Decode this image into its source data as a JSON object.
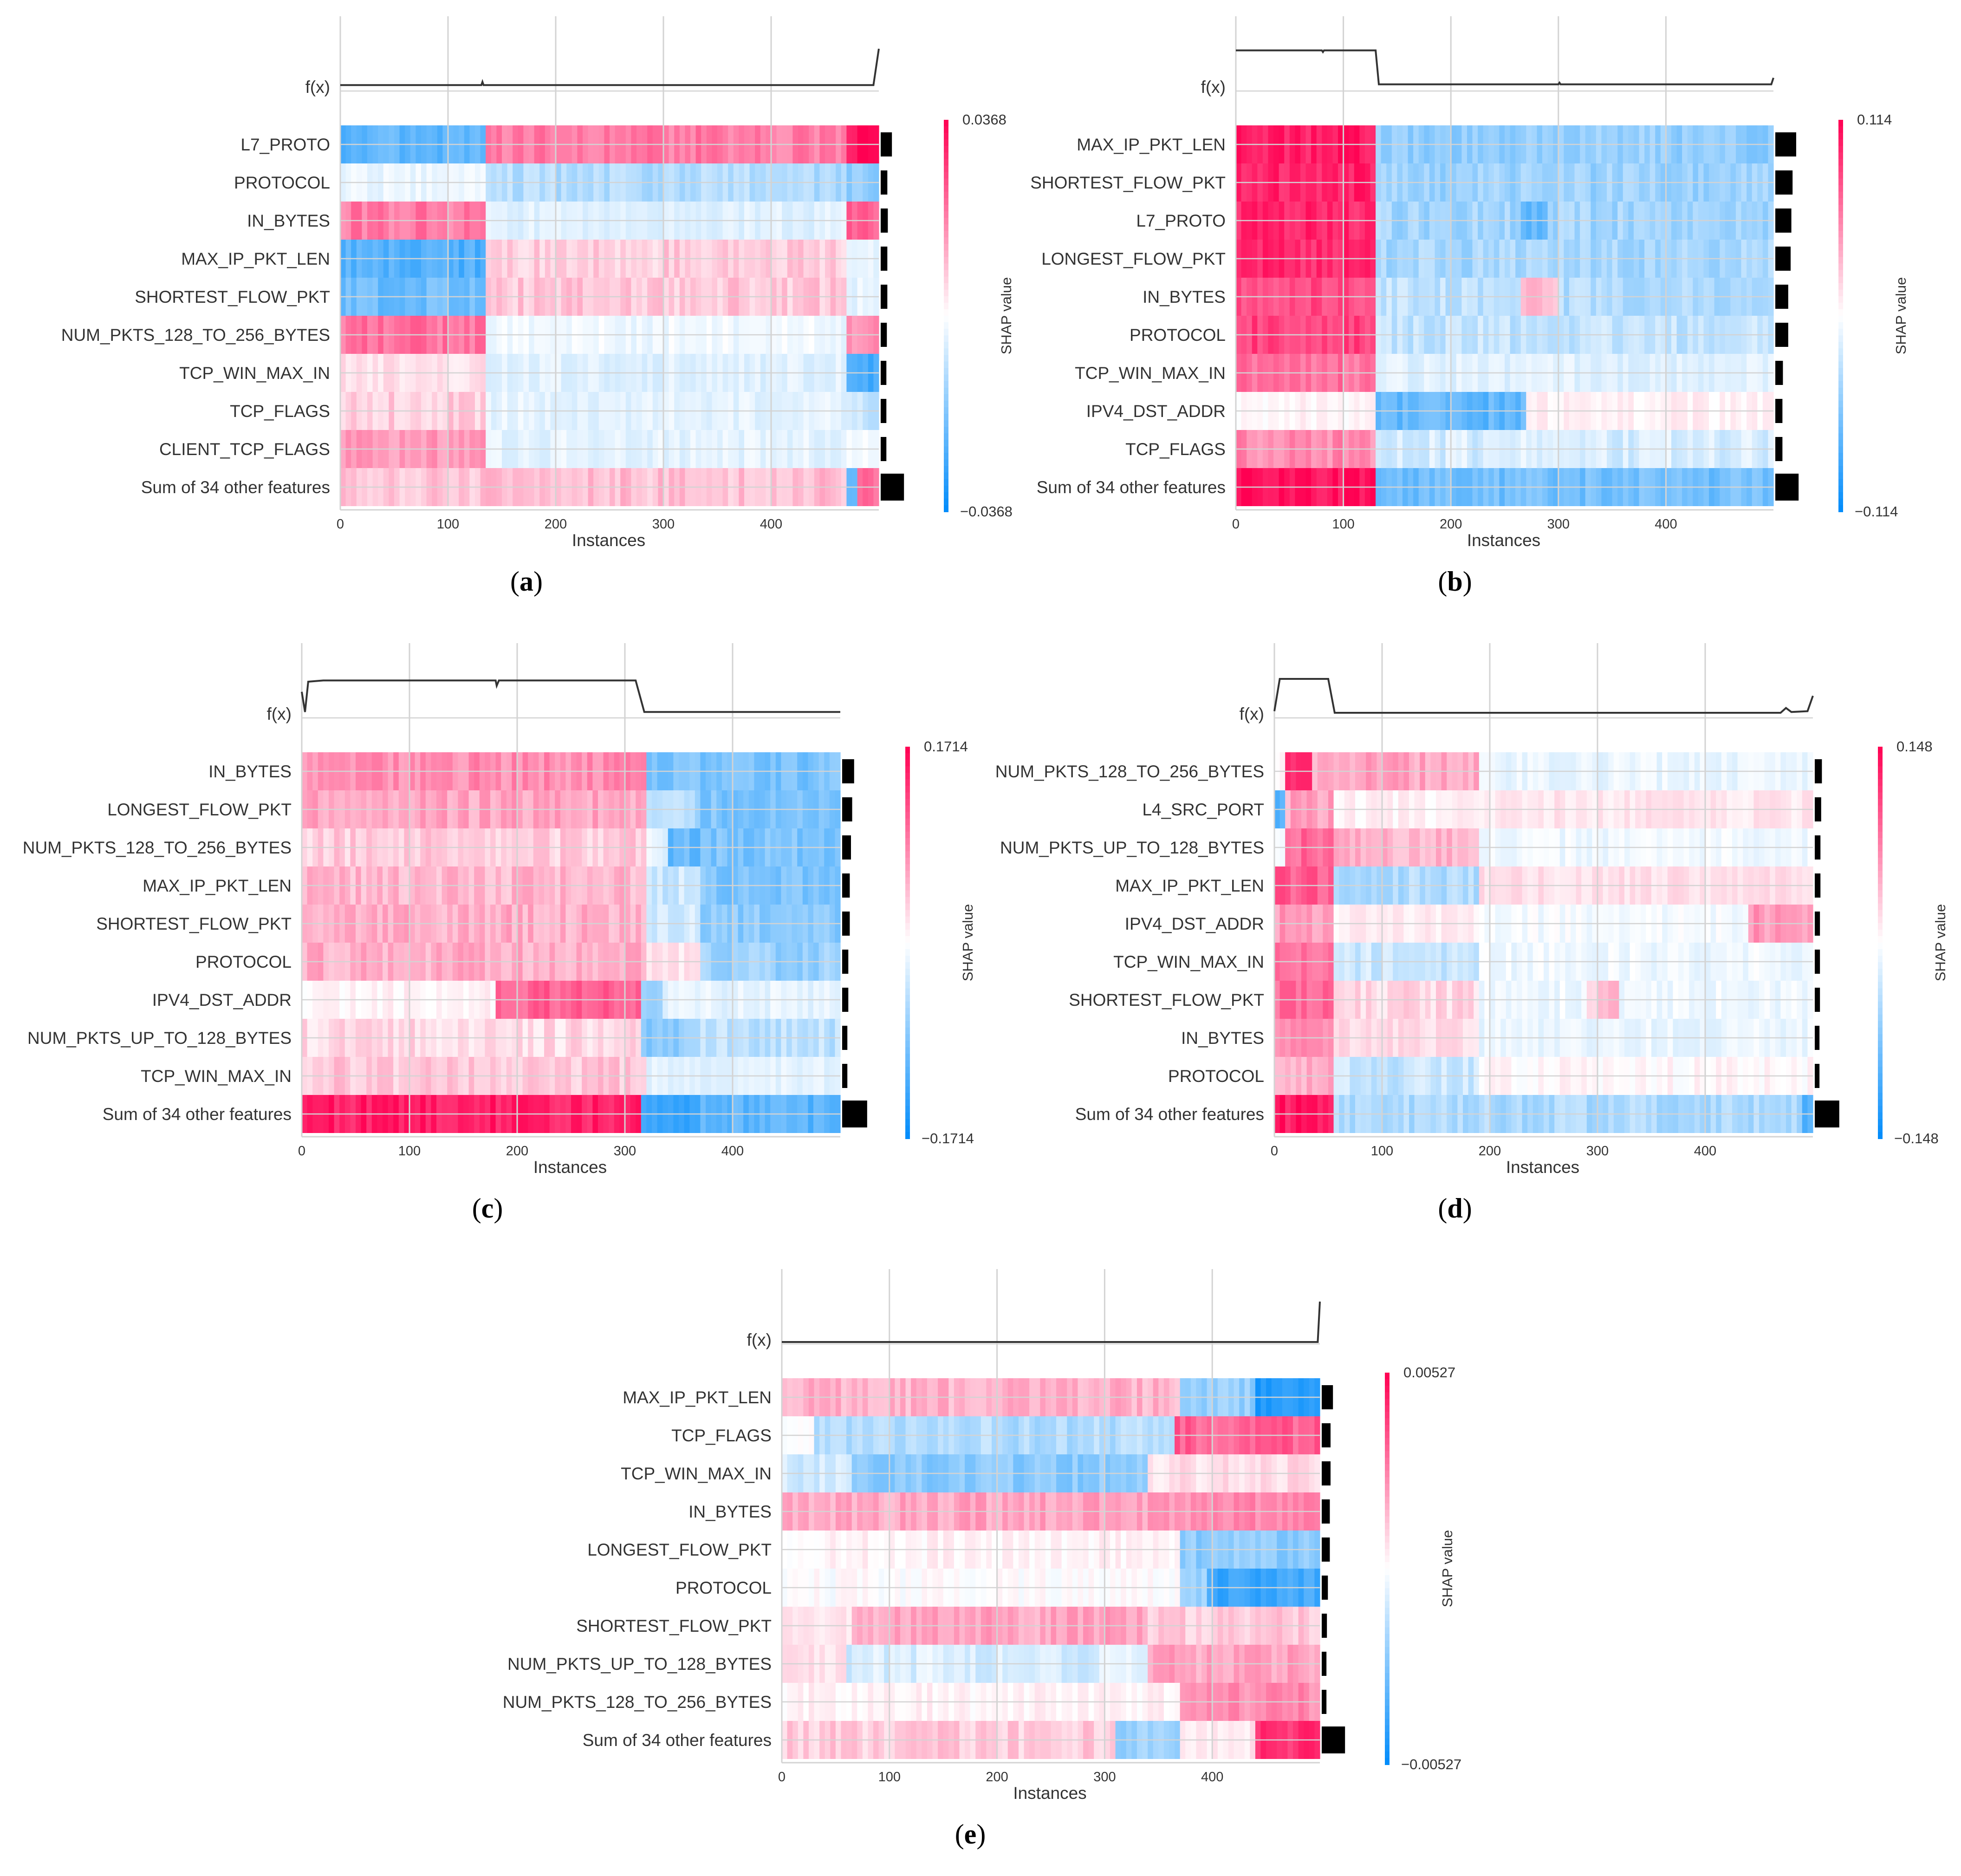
{
  "figure": {
    "colors": {
      "positive": "#ff0052",
      "negative": "#008bfb",
      "neutral": "#ffffff",
      "grid": "#d3d3d3",
      "line": "#333333",
      "bar": "#000000"
    },
    "fx_label": "f(x)",
    "instances_label": "Instances",
    "colorbar_label": "SHAP value"
  },
  "chart_data": [
    {
      "type": "heatmap",
      "panel": "a",
      "caption": {
        "open": "(",
        "letter": "a",
        "close": ")"
      },
      "features": [
        "L7_PROTO",
        "PROTOCOL",
        "IN_BYTES",
        "MAX_IP_PKT_LEN",
        "SHORTEST_FLOW_PKT",
        "NUM_PKTS_128_TO_256_BYTES",
        "TCP_WIN_MAX_IN",
        "TCP_FLAGS",
        "CLIENT_TCP_FLAGS",
        "Sum of 34 other features"
      ],
      "xlabel": "Instances",
      "xticks": [
        0,
        100,
        200,
        300,
        400
      ],
      "xlim": [
        0,
        500
      ],
      "n_instances": 500,
      "colorbar": {
        "max": 0.0368,
        "min": -0.0368,
        "max_label": "0.0368",
        "min_label": "−0.0368",
        "label": "SHAP value"
      },
      "segments": [
        [
          [
            0,
            133,
            -0.62
          ],
          [
            133,
            470,
            0.52
          ],
          [
            470,
            500,
            0.95
          ]
        ],
        [
          [
            0,
            133,
            -0.08
          ],
          [
            133,
            470,
            -0.3
          ],
          [
            470,
            500,
            -0.42
          ]
        ],
        [
          [
            0,
            133,
            0.52
          ],
          [
            133,
            470,
            -0.12
          ],
          [
            470,
            500,
            0.6
          ]
        ],
        [
          [
            0,
            133,
            -0.68
          ],
          [
            133,
            470,
            0.2
          ],
          [
            470,
            500,
            -0.12
          ]
        ],
        [
          [
            0,
            133,
            -0.58
          ],
          [
            133,
            470,
            0.22
          ],
          [
            470,
            500,
            -0.1
          ]
        ],
        [
          [
            0,
            133,
            0.55
          ],
          [
            133,
            470,
            -0.06
          ],
          [
            470,
            500,
            0.45
          ]
        ],
        [
          [
            0,
            133,
            0.12
          ],
          [
            133,
            470,
            -0.12
          ],
          [
            470,
            500,
            -0.72
          ]
        ],
        [
          [
            0,
            133,
            0.2
          ],
          [
            133,
            470,
            -0.1
          ],
          [
            470,
            500,
            -0.2
          ]
        ],
        [
          [
            0,
            133,
            0.38
          ],
          [
            133,
            470,
            -0.1
          ],
          [
            470,
            500,
            -0.05
          ]
        ],
        [
          [
            0,
            133,
            0.22
          ],
          [
            133,
            470,
            0.25
          ],
          [
            470,
            480,
            -0.55
          ],
          [
            480,
            500,
            0.55
          ]
        ]
      ],
      "importance": [
        0.35,
        0.16,
        0.18,
        0.16,
        0.16,
        0.14,
        0.12,
        0.12,
        0.12,
        0.85
      ],
      "fx": [
        [
          0,
          0.1
        ],
        [
          131,
          0.1
        ],
        [
          132,
          0.18
        ],
        [
          133,
          0.1
        ],
        [
          495,
          0.1
        ],
        [
          500,
          1.0
        ]
      ]
    },
    {
      "type": "heatmap",
      "panel": "b",
      "caption": {
        "open": "(",
        "letter": "b",
        "close": ")"
      },
      "features": [
        "MAX_IP_PKT_LEN",
        "SHORTEST_FLOW_PKT",
        "L7_PROTO",
        "LONGEST_FLOW_PKT",
        "IN_BYTES",
        "PROTOCOL",
        "TCP_WIN_MAX_IN",
        "IPV4_DST_ADDR",
        "TCP_FLAGS",
        "Sum of 34 other features"
      ],
      "xlabel": "Instances",
      "xticks": [
        0,
        100,
        200,
        300,
        400
      ],
      "xlim": [
        0,
        500
      ],
      "n_instances": 500,
      "colorbar": {
        "max": 0.114,
        "min": -0.114,
        "max_label": "0.114",
        "min_label": "−0.114",
        "label": "SHAP value"
      },
      "segments": [
        [
          [
            0,
            132,
            0.88
          ],
          [
            132,
            500,
            -0.42
          ]
        ],
        [
          [
            0,
            132,
            0.86
          ],
          [
            132,
            500,
            -0.38
          ]
        ],
        [
          [
            0,
            132,
            0.85
          ],
          [
            132,
            265,
            -0.36
          ],
          [
            265,
            290,
            -0.6
          ],
          [
            290,
            500,
            -0.36
          ]
        ],
        [
          [
            0,
            132,
            0.84
          ],
          [
            132,
            500,
            -0.34
          ]
        ],
        [
          [
            0,
            132,
            0.7
          ],
          [
            132,
            265,
            -0.24
          ],
          [
            265,
            300,
            0.28
          ],
          [
            300,
            500,
            -0.3
          ]
        ],
        [
          [
            0,
            132,
            0.75
          ],
          [
            132,
            500,
            -0.24
          ]
        ],
        [
          [
            0,
            132,
            0.55
          ],
          [
            132,
            500,
            -0.12
          ]
        ],
        [
          [
            0,
            132,
            0.04
          ],
          [
            132,
            270,
            -0.62
          ],
          [
            270,
            500,
            0.06
          ]
        ],
        [
          [
            0,
            132,
            0.46
          ],
          [
            132,
            500,
            -0.16
          ]
        ],
        [
          [
            0,
            132,
            0.95
          ],
          [
            132,
            500,
            -0.55
          ]
        ]
      ],
      "importance": [
        0.75,
        0.6,
        0.55,
        0.52,
        0.42,
        0.42,
        0.2,
        0.18,
        0.18,
        0.85
      ],
      "fx": [
        [
          0,
          0.96
        ],
        [
          80,
          0.96
        ],
        [
          81,
          0.92
        ],
        [
          82,
          0.96
        ],
        [
          130,
          0.96
        ],
        [
          133,
          0.12
        ],
        [
          300,
          0.12
        ],
        [
          301,
          0.16
        ],
        [
          302,
          0.12
        ],
        [
          498,
          0.12
        ],
        [
          500,
          0.28
        ]
      ]
    },
    {
      "type": "heatmap",
      "panel": "c",
      "caption": {
        "open": "(",
        "letter": "c",
        "close": ")"
      },
      "features": [
        "IN_BYTES",
        "LONGEST_FLOW_PKT",
        "NUM_PKTS_128_TO_256_BYTES",
        "MAX_IP_PKT_LEN",
        "SHORTEST_FLOW_PKT",
        "PROTOCOL",
        "IPV4_DST_ADDR",
        "NUM_PKTS_UP_TO_128_BYTES",
        "TCP_WIN_MAX_IN",
        "Sum of 34 other features"
      ],
      "xlabel": "Instances",
      "xticks": [
        0,
        100,
        200,
        300,
        400
      ],
      "xlim": [
        0,
        500
      ],
      "n_instances": 500,
      "colorbar": {
        "max": 0.1714,
        "min": -0.1714,
        "max_label": "0.1714",
        "min_label": "−0.1714",
        "label": "SHAP value"
      },
      "segments": [
        [
          [
            0,
            320,
            0.45
          ],
          [
            320,
            500,
            -0.52
          ]
        ],
        [
          [
            0,
            320,
            0.35
          ],
          [
            320,
            370,
            -0.3
          ],
          [
            370,
            500,
            -0.5
          ]
        ],
        [
          [
            0,
            320,
            0.2
          ],
          [
            320,
            340,
            -0.1
          ],
          [
            340,
            370,
            -0.6
          ],
          [
            370,
            500,
            -0.5
          ]
        ],
        [
          [
            0,
            320,
            0.28
          ],
          [
            320,
            370,
            -0.2
          ],
          [
            370,
            500,
            -0.5
          ]
        ],
        [
          [
            0,
            320,
            0.32
          ],
          [
            320,
            370,
            -0.15
          ],
          [
            370,
            500,
            -0.45
          ]
        ],
        [
          [
            0,
            320,
            0.32
          ],
          [
            320,
            370,
            0.1
          ],
          [
            370,
            500,
            -0.4
          ]
        ],
        [
          [
            0,
            180,
            0.05
          ],
          [
            180,
            315,
            0.62
          ],
          [
            315,
            335,
            -0.45
          ],
          [
            335,
            500,
            -0.1
          ]
        ],
        [
          [
            0,
            315,
            0.15
          ],
          [
            315,
            340,
            -0.45
          ],
          [
            340,
            370,
            -0.42
          ],
          [
            370,
            500,
            -0.25
          ]
        ],
        [
          [
            0,
            320,
            0.22
          ],
          [
            320,
            500,
            -0.1
          ]
        ],
        [
          [
            0,
            315,
            0.88
          ],
          [
            315,
            370,
            -0.82
          ],
          [
            370,
            500,
            -0.65
          ]
        ]
      ],
      "importance": [
        0.38,
        0.3,
        0.25,
        0.2,
        0.2,
        0.14,
        0.14,
        0.1,
        0.1,
        0.92
      ],
      "fx": [
        [
          0,
          0.6
        ],
        [
          3,
          0.1
        ],
        [
          6,
          0.85
        ],
        [
          20,
          0.88
        ],
        [
          180,
          0.88
        ],
        [
          181,
          0.75
        ],
        [
          183,
          0.88
        ],
        [
          310,
          0.88
        ],
        [
          318,
          0.1
        ],
        [
          500,
          0.1
        ]
      ]
    },
    {
      "type": "heatmap",
      "panel": "d",
      "caption": {
        "open": "(",
        "letter": "d",
        "close": ")"
      },
      "features": [
        "NUM_PKTS_128_TO_256_BYTES",
        "L4_SRC_PORT",
        "NUM_PKTS_UP_TO_128_BYTES",
        "MAX_IP_PKT_LEN",
        "IPV4_DST_ADDR",
        "TCP_WIN_MAX_IN",
        "SHORTEST_FLOW_PKT",
        "IN_BYTES",
        "PROTOCOL",
        "Sum of 34 other features"
      ],
      "xlabel": "Instances",
      "xticks": [
        0,
        100,
        200,
        300,
        400
      ],
      "xlim": [
        0,
        500
      ],
      "n_instances": 500,
      "colorbar": {
        "max": 0.148,
        "min": -0.148,
        "max_label": "0.148",
        "min_label": "−0.148",
        "label": "SHAP value"
      },
      "segments": [
        [
          [
            0,
            8,
            0.0
          ],
          [
            8,
            35,
            0.8
          ],
          [
            35,
            57,
            0.3
          ],
          [
            57,
            190,
            0.35
          ],
          [
            190,
            500,
            -0.08
          ]
        ],
        [
          [
            0,
            8,
            -0.7
          ],
          [
            8,
            57,
            0.35
          ],
          [
            57,
            190,
            0.05
          ],
          [
            190,
            500,
            0.1
          ]
        ],
        [
          [
            0,
            8,
            0.0
          ],
          [
            8,
            57,
            0.6
          ],
          [
            57,
            190,
            0.3
          ],
          [
            190,
            500,
            -0.06
          ]
        ],
        [
          [
            0,
            57,
            0.65
          ],
          [
            57,
            190,
            -0.3
          ],
          [
            190,
            500,
            0.12
          ]
        ],
        [
          [
            0,
            57,
            0.4
          ],
          [
            57,
            190,
            0.06
          ],
          [
            190,
            440,
            -0.04
          ],
          [
            440,
            500,
            0.4
          ]
        ],
        [
          [
            0,
            57,
            0.55
          ],
          [
            57,
            190,
            -0.2
          ],
          [
            190,
            500,
            -0.06
          ]
        ],
        [
          [
            0,
            57,
            0.6
          ],
          [
            57,
            190,
            0.15
          ],
          [
            190,
            290,
            -0.06
          ],
          [
            290,
            320,
            0.25
          ],
          [
            320,
            500,
            -0.06
          ]
        ],
        [
          [
            0,
            57,
            0.4
          ],
          [
            57,
            190,
            0.14
          ],
          [
            190,
            500,
            -0.08
          ]
        ],
        [
          [
            0,
            57,
            0.32
          ],
          [
            57,
            190,
            -0.22
          ],
          [
            190,
            500,
            0.03
          ]
        ],
        [
          [
            0,
            57,
            0.9
          ],
          [
            57,
            490,
            -0.32
          ],
          [
            490,
            500,
            -0.7
          ]
        ]
      ],
      "importance": [
        0.18,
        0.15,
        0.12,
        0.12,
        0.1,
        0.1,
        0.1,
        0.08,
        0.08,
        0.9
      ],
      "fx": [
        [
          0,
          0.12
        ],
        [
          5,
          0.92
        ],
        [
          50,
          0.92
        ],
        [
          56,
          0.08
        ],
        [
          470,
          0.08
        ],
        [
          475,
          0.2
        ],
        [
          480,
          0.1
        ],
        [
          495,
          0.12
        ],
        [
          500,
          0.5
        ]
      ]
    },
    {
      "type": "heatmap",
      "panel": "e",
      "caption": {
        "open": "(",
        "letter": "e",
        "close": ")"
      },
      "features": [
        "MAX_IP_PKT_LEN",
        "TCP_FLAGS",
        "TCP_WIN_MAX_IN",
        "IN_BYTES",
        "LONGEST_FLOW_PKT",
        "PROTOCOL",
        "SHORTEST_FLOW_PKT",
        "NUM_PKTS_UP_TO_128_BYTES",
        "NUM_PKTS_128_TO_256_BYTES",
        "Sum of 34 other features"
      ],
      "xlabel": "Instances",
      "xticks": [
        0,
        100,
        200,
        300,
        400
      ],
      "xlim": [
        0,
        500
      ],
      "n_instances": 500,
      "colorbar": {
        "max": 0.00527,
        "min": -0.00527,
        "max_label": "0.00527",
        "min_label": "−0.00527",
        "label": "SHAP value"
      },
      "segments": [
        [
          [
            0,
            370,
            0.3
          ],
          [
            370,
            440,
            -0.4
          ],
          [
            440,
            500,
            -0.88
          ]
        ],
        [
          [
            0,
            30,
            0.0
          ],
          [
            30,
            365,
            -0.3
          ],
          [
            365,
            500,
            0.62
          ]
        ],
        [
          [
            0,
            65,
            -0.2
          ],
          [
            65,
            340,
            -0.45
          ],
          [
            340,
            500,
            0.15
          ]
        ],
        [
          [
            0,
            340,
            0.35
          ],
          [
            340,
            500,
            0.45
          ]
        ],
        [
          [
            0,
            370,
            0.05
          ],
          [
            370,
            500,
            -0.45
          ]
        ],
        [
          [
            0,
            370,
            0.0
          ],
          [
            370,
            395,
            -0.35
          ],
          [
            395,
            500,
            -0.75
          ]
        ],
        [
          [
            0,
            65,
            0.1
          ],
          [
            65,
            340,
            0.35
          ],
          [
            340,
            500,
            0.2
          ]
        ],
        [
          [
            0,
            60,
            0.12
          ],
          [
            60,
            340,
            -0.15
          ],
          [
            340,
            500,
            0.35
          ]
        ],
        [
          [
            0,
            370,
            0.05
          ],
          [
            370,
            500,
            0.45
          ]
        ],
        [
          [
            0,
            310,
            0.2
          ],
          [
            310,
            370,
            -0.4
          ],
          [
            370,
            440,
            0.1
          ],
          [
            440,
            500,
            0.8
          ]
        ]
      ],
      "importance": [
        0.35,
        0.25,
        0.25,
        0.22,
        0.22,
        0.14,
        0.1,
        0.08,
        0.08,
        0.85
      ],
      "fx": [
        [
          0,
          0.0
        ],
        [
          498,
          0.0
        ],
        [
          500,
          1.0
        ]
      ]
    }
  ]
}
